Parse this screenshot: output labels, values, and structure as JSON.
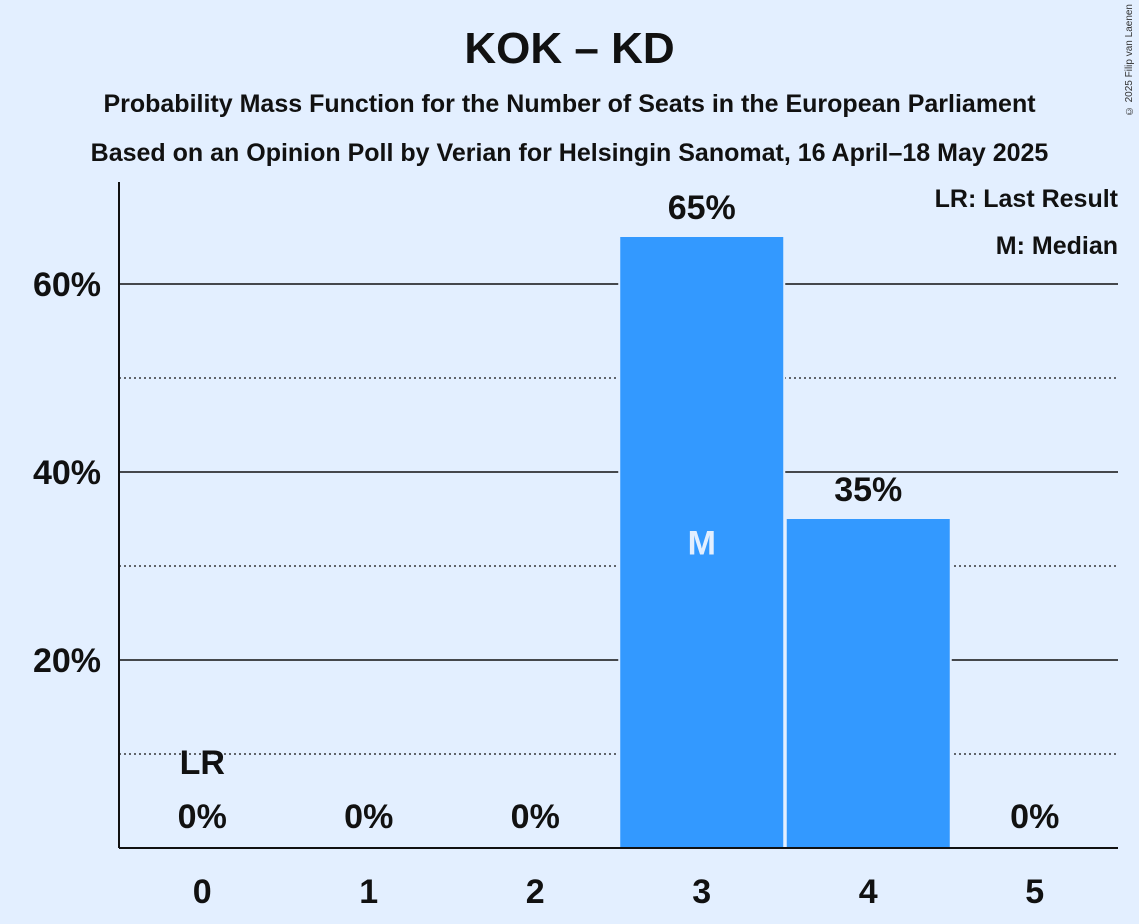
{
  "title": "KOK – KD",
  "subtitle": "Probability Mass Function for the Number of Seats in the European Parliament",
  "subtitle2": "Based on an Opinion Poll by Verian for Helsingin Sanomat, 16 April–18 May 2025",
  "copyright": "© 2025 Filip van Laenen",
  "legend": {
    "last_result": "LR: Last Result",
    "median": "M: Median"
  },
  "chart_data": {
    "type": "bar",
    "categories": [
      "0",
      "1",
      "2",
      "3",
      "4",
      "5"
    ],
    "values": [
      0,
      0,
      0,
      65,
      35,
      0
    ],
    "value_labels": [
      "0%",
      "0%",
      "0%",
      "65%",
      "35%",
      "0%"
    ],
    "ylim": [
      0,
      70
    ],
    "yticks": [
      20,
      40,
      60
    ],
    "ytick_labels": [
      "20%",
      "40%",
      "60%"
    ],
    "minor_gridlines": [
      10,
      30,
      50
    ],
    "last_result_category": "0",
    "last_result_label": "LR",
    "median_category": "3",
    "median_label": "M",
    "bar_color": "#3399ff",
    "background": "#e3efff"
  }
}
